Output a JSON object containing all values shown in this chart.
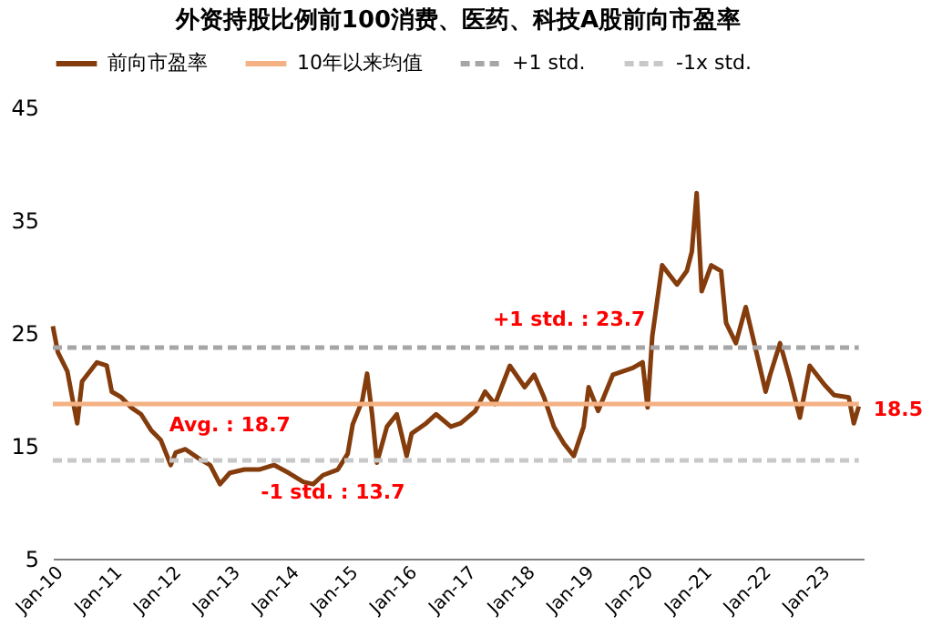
{
  "chart_data": {
    "type": "line",
    "title": "外资持股比例前100消费、医药、科技A股前向市盈率",
    "xlim": [
      "2010-01",
      "2023-10"
    ],
    "ylim": [
      5,
      45
    ],
    "yticks": [
      5,
      15,
      25,
      35,
      45
    ],
    "xticks": [
      {
        "value": "2010-01",
        "label": "Jan-10"
      },
      {
        "value": "2011-01",
        "label": "Jan-11"
      },
      {
        "value": "2012-01",
        "label": "Jan-12"
      },
      {
        "value": "2013-01",
        "label": "Jan-13"
      },
      {
        "value": "2014-01",
        "label": "Jan-14"
      },
      {
        "value": "2015-01",
        "label": "Jan-15"
      },
      {
        "value": "2016-01",
        "label": "Jan-16"
      },
      {
        "value": "2017-01",
        "label": "Jan-17"
      },
      {
        "value": "2018-01",
        "label": "Jan-18"
      },
      {
        "value": "2019-01",
        "label": "Jan-19"
      },
      {
        "value": "2020-01",
        "label": "Jan-20"
      },
      {
        "value": "2021-01",
        "label": "Jan-21"
      },
      {
        "value": "2022-01",
        "label": "Jan-22"
      },
      {
        "value": "2023-01",
        "label": "Jan-23"
      }
    ],
    "grid": false,
    "legend": "top",
    "series": [
      {
        "name": "前向市盈率",
        "color": "#843c0c",
        "line_style": "solid",
        "x": [
          "2010-01",
          "2010-02",
          "2010-04",
          "2010-05",
          "2010-06",
          "2010-07",
          "2010-10",
          "2010-12",
          "2011-01",
          "2011-03",
          "2011-05",
          "2011-07",
          "2011-09",
          "2011-11",
          "2012-01",
          "2012-02",
          "2012-04",
          "2012-07",
          "2012-09",
          "2012-11",
          "2013-01",
          "2013-04",
          "2013-07",
          "2013-10",
          "2014-01",
          "2014-04",
          "2014-06",
          "2014-08",
          "2014-11",
          "2015-01",
          "2015-02",
          "2015-04",
          "2015-05",
          "2015-06",
          "2015-07",
          "2015-09",
          "2015-11",
          "2016-01",
          "2016-02",
          "2016-05",
          "2016-07",
          "2016-10",
          "2016-12",
          "2017-03",
          "2017-05",
          "2017-07",
          "2017-10",
          "2018-01",
          "2018-03",
          "2018-05",
          "2018-07",
          "2018-09",
          "2018-11",
          "2019-01",
          "2019-02",
          "2019-04",
          "2019-07",
          "2019-11",
          "2020-01",
          "2020-02",
          "2020-03",
          "2020-05",
          "2020-08",
          "2020-10",
          "2020-11",
          "2020-12",
          "2021-01",
          "2021-03",
          "2021-05",
          "2021-06",
          "2021-08",
          "2021-10",
          "2021-12",
          "2022-02",
          "2022-03",
          "2022-05",
          "2022-07",
          "2022-09",
          "2022-11",
          "2023-02",
          "2023-04",
          "2023-07",
          "2023-08",
          "2023-09"
        ],
        "values": [
          25.6,
          23.3,
          21.6,
          19.3,
          17.0,
          20.7,
          22.4,
          22.1,
          19.8,
          19.3,
          18.4,
          17.8,
          16.4,
          15.5,
          13.3,
          14.4,
          14.7,
          13.8,
          13.3,
          11.6,
          12.6,
          12.9,
          12.9,
          13.3,
          12.6,
          11.8,
          11.6,
          12.4,
          12.9,
          14.3,
          16.9,
          19.0,
          21.4,
          17.8,
          13.5,
          16.7,
          17.8,
          14.1,
          16.1,
          17.0,
          17.8,
          16.7,
          17.0,
          18.1,
          19.8,
          18.7,
          22.1,
          20.2,
          21.3,
          19.3,
          16.7,
          15.2,
          14.1,
          16.7,
          20.2,
          18.1,
          21.3,
          21.9,
          22.4,
          18.4,
          24.7,
          31.0,
          29.3,
          30.5,
          32.2,
          37.4,
          28.7,
          31.0,
          30.5,
          25.9,
          24.1,
          27.3,
          23.6,
          19.8,
          21.3,
          24.1,
          21.0,
          17.5,
          22.1,
          20.4,
          19.5,
          19.3,
          17.0,
          18.5
        ]
      },
      {
        "name": "10年以来均值",
        "color": "#f4b183",
        "line_style": "solid",
        "x": [
          "2010-01",
          "2023-09"
        ],
        "values": [
          18.7,
          18.7
        ]
      },
      {
        "name": "+1 std.",
        "color": "#a6a6a6",
        "line_style": "dashed",
        "x": [
          "2010-01",
          "2023-09"
        ],
        "values": [
          23.7,
          23.7
        ]
      },
      {
        "name": "-1x std.",
        "color": "#c8c8c8",
        "line_style": "dashed",
        "x": [
          "2010-01",
          "2023-09"
        ],
        "values": [
          13.7,
          13.7
        ]
      }
    ],
    "annotations": [
      {
        "text": "Avg. : 18.7",
        "x": "2013-01",
        "y": 18.7
      },
      {
        "text": "+1 std. : 23.7",
        "x": "2019-01",
        "y": 23.7
      },
      {
        "text": "-1 std. : 13.7",
        "x": "2014-10",
        "y": 13.7
      },
      {
        "text": "18.5",
        "x": "2023-09",
        "y": 18.5
      }
    ]
  }
}
